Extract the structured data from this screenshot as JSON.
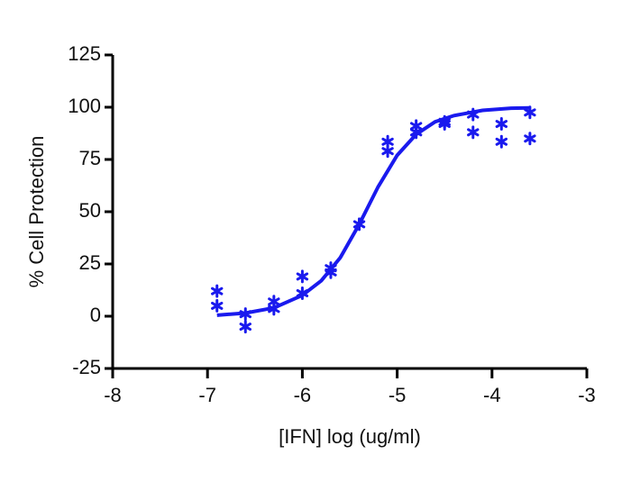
{
  "chart_data": {
    "type": "scatter",
    "xlabel": "[IFN] log (ug/ml)",
    "ylabel": "% Cell Protection",
    "xlim": [
      -8,
      -3
    ],
    "xticks": [
      -8,
      -7,
      -6,
      -5,
      -4,
      -3
    ],
    "ylim": [
      -25,
      125
    ],
    "yticks": [
      -25,
      0,
      25,
      50,
      75,
      100,
      125
    ],
    "series": [
      {
        "style": "points",
        "color": "#1a1aee",
        "x": [
          -6.9,
          -6.9,
          -6.6,
          -6.6,
          -6.3,
          -6.3,
          -6.0,
          -6.0,
          -5.7,
          -5.7,
          -5.4,
          -5.1,
          -5.1,
          -4.8,
          -4.8,
          -4.5,
          -4.5,
          -4.2,
          -4.2,
          -3.9,
          -3.9,
          -3.6,
          -3.6
        ],
        "values": [
          12,
          5,
          1,
          -5,
          7,
          3.5,
          19,
          11,
          23,
          21,
          44,
          83.5,
          79,
          91,
          88,
          93,
          92,
          96.5,
          88,
          92,
          83.5,
          97.5,
          85
        ]
      },
      {
        "style": "line",
        "color": "#1a1aee",
        "x": [
          -6.9,
          -6.6,
          -6.3,
          -6.0,
          -5.8,
          -5.6,
          -5.4,
          -5.2,
          -5.0,
          -4.8,
          -4.6,
          -4.4,
          -4.1,
          -3.8,
          -3.6
        ],
        "values": [
          0.5,
          1.5,
          4,
          10,
          17,
          28,
          44,
          62,
          77,
          87,
          93,
          96,
          98.5,
          99.5,
          99.7
        ]
      }
    ]
  }
}
